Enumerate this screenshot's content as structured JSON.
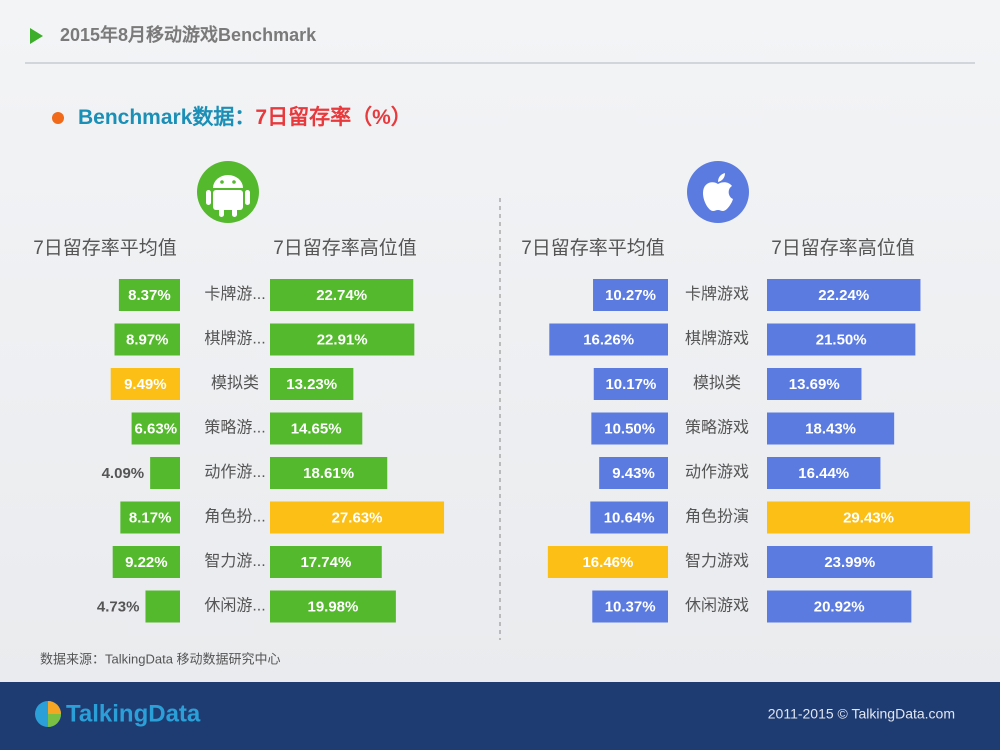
{
  "header": {
    "title": "2015年8月移动游戏Benchmark"
  },
  "subtitle": {
    "label": "Benchmark数据：",
    "metric": "7日留存率（%）"
  },
  "chart_data": [
    {
      "type": "bar",
      "platform": "android",
      "categories": [
        "卡牌游...",
        "棋牌游...",
        "模拟类",
        "策略游...",
        "动作游...",
        "角色扮...",
        "智力游...",
        "休闲游..."
      ],
      "series": [
        {
          "name": "7日留存率平均值",
          "color": "#55b92e",
          "colors": [
            "#55b92e",
            "#55b92e",
            "#fbbf16",
            "#55b92e",
            "#55b92e",
            "#55b92e",
            "#55b92e",
            "#55b92e"
          ],
          "values": [
            8.37,
            8.97,
            9.49,
            6.63,
            4.09,
            8.17,
            9.22,
            4.73
          ],
          "value_labels": [
            "8.37%",
            "8.97%",
            "9.49%",
            "6.63%",
            "4.09%",
            "8.17%",
            "9.22%",
            "4.73%"
          ]
        },
        {
          "name": "7日留存率高位值",
          "color": "#55b92e",
          "colors": [
            "#55b92e",
            "#55b92e",
            "#55b92e",
            "#55b92e",
            "#55b92e",
            "#fbbf16",
            "#55b92e",
            "#55b92e"
          ],
          "values": [
            22.74,
            22.91,
            13.23,
            14.65,
            18.61,
            27.63,
            17.74,
            19.98
          ],
          "value_labels": [
            "22.74%",
            "22.91%",
            "13.23%",
            "14.65%",
            "18.61%",
            "27.63%",
            "17.74%",
            "19.98%"
          ]
        }
      ]
    },
    {
      "type": "bar",
      "platform": "ios",
      "categories": [
        "卡牌游戏",
        "棋牌游戏",
        "模拟类",
        "策略游戏",
        "动作游戏",
        "角色扮演",
        "智力游戏",
        "休闲游戏"
      ],
      "series": [
        {
          "name": "7日留存率平均值",
          "color": "#5b7be0",
          "colors": [
            "#5b7be0",
            "#5b7be0",
            "#5b7be0",
            "#5b7be0",
            "#5b7be0",
            "#5b7be0",
            "#fbbf16",
            "#5b7be0"
          ],
          "values": [
            10.27,
            16.26,
            10.17,
            10.5,
            9.43,
            10.64,
            16.46,
            10.37
          ],
          "value_labels": [
            "10.27%",
            "16.26%",
            "10.17%",
            "10.50%",
            "9.43%",
            "10.64%",
            "16.46%",
            "10.37%"
          ]
        },
        {
          "name": "7日留存率高位值",
          "color": "#5b7be0",
          "colors": [
            "#5b7be0",
            "#5b7be0",
            "#5b7be0",
            "#5b7be0",
            "#5b7be0",
            "#fbbf16",
            "#5b7be0",
            "#5b7be0"
          ],
          "values": [
            22.24,
            21.5,
            13.69,
            18.43,
            16.44,
            29.43,
            23.99,
            20.92
          ],
          "value_labels": [
            "22.24%",
            "21.50%",
            "13.69%",
            "18.43%",
            "16.44%",
            "29.43%",
            "23.99%",
            "20.92%"
          ]
        }
      ]
    }
  ],
  "source": "数据来源：TalkingData 移动数据研究中心",
  "footer": {
    "logo": "TalkingData",
    "copyright": "2011-2015 © TalkingData.com"
  }
}
